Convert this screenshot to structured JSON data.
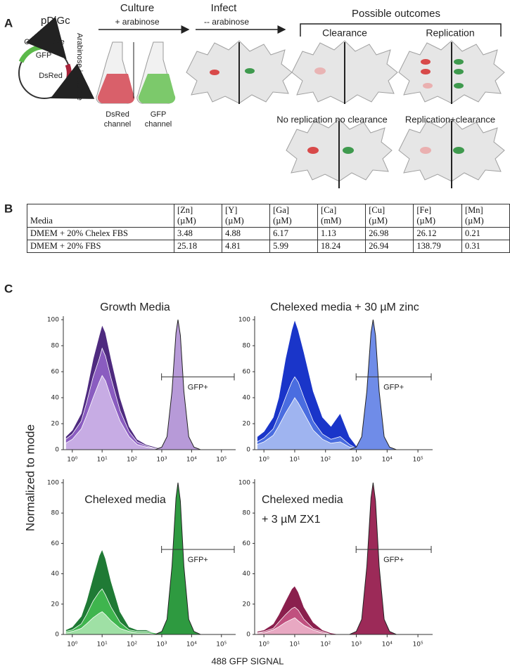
{
  "panel_a": {
    "label": "A",
    "plasmid": "pDiGc",
    "constitutive": "Constitutive",
    "gfp": "GFP",
    "dsred": "DsRed",
    "arabinose_inducible": "Arabinose inducible",
    "culture": "Culture",
    "plus_arabinose": "+ arabinose",
    "infect": "Infect",
    "minus_arabinose": "-- arabinose",
    "possible_outcomes": "Possible outcomes",
    "clearance": "Clearance",
    "replication": "Replication",
    "dsred_channel": [
      "DsRed",
      "channel"
    ],
    "gfp_channel": [
      "GFP",
      "channel"
    ],
    "no_replication_no_clearance": "No replication no clearance",
    "replication_clearance": "Replication+clearance"
  },
  "panel_b": {
    "label": "B",
    "table": {
      "header": [
        [
          "Media"
        ],
        [
          "[Zn]",
          "(µM)"
        ],
        [
          "[Y]",
          "(µM)"
        ],
        [
          "[Ga]",
          "(µM)"
        ],
        [
          "[Ca]",
          "(mM)"
        ],
        [
          "[Cu]",
          "(µM)"
        ],
        [
          "[Fe]",
          "(µM)"
        ],
        [
          "[Mn]",
          "(µM)"
        ]
      ],
      "rows": [
        [
          "DMEM + 20% Chelex FBS",
          "3.48",
          "4.88",
          "6.17",
          "1.13",
          "26.98",
          "26.12",
          "0.21"
        ],
        [
          "DMEM + 20% FBS",
          "25.18",
          "4.81",
          "5.99",
          "18.24",
          "26.94",
          "138.79",
          "0.31"
        ]
      ]
    }
  },
  "panel_c": {
    "label": "C",
    "ylabel": "Normalized to mode",
    "xlabel": "488 GFP SIGNAL"
  },
  "chart_data": [
    {
      "type": "area",
      "title_lines": [
        "Growth Media"
      ],
      "gate_label": "GFP+",
      "xscale": "log",
      "xlim": [
        0.5,
        300000
      ],
      "ylim": [
        0,
        100
      ],
      "xticks": [
        {
          "value": 1,
          "label": "10⁰"
        },
        {
          "value": 10,
          "label": "10¹"
        },
        {
          "value": 100,
          "label": "10²"
        },
        {
          "value": 1000,
          "label": "10³"
        },
        {
          "value": 10000,
          "label": "10⁴"
        },
        {
          "value": 100000,
          "label": "10⁵"
        }
      ],
      "yticks": [
        0,
        20,
        40,
        60,
        80,
        100
      ],
      "x": [
        0.6,
        1,
        2,
        3,
        5,
        8,
        10,
        13,
        20,
        40,
        80,
        150,
        300,
        600,
        1000,
        1500,
        2200,
        3000,
        3500,
        4200,
        5500,
        8000,
        12000,
        20000,
        50000
      ],
      "series": [
        {
          "color": "#4e2a7f",
          "values": [
            10,
            15,
            28,
            45,
            70,
            88,
            96,
            90,
            70,
            40,
            18,
            8,
            4,
            2,
            1,
            0,
            0,
            0,
            0,
            0,
            0,
            0,
            0,
            0,
            0
          ]
        },
        {
          "color": "#8a5cc0",
          "values": [
            8,
            12,
            22,
            36,
            56,
            70,
            78,
            72,
            55,
            30,
            14,
            6,
            3,
            1,
            1,
            0,
            0,
            0,
            0,
            0,
            0,
            0,
            0,
            0,
            0
          ]
        },
        {
          "color": "#c7ace4",
          "values": [
            5,
            8,
            16,
            26,
            40,
            52,
            57,
            53,
            40,
            22,
            10,
            4,
            2,
            1,
            0,
            0,
            0,
            0,
            0,
            0,
            0,
            0,
            0,
            0,
            0
          ]
        },
        {
          "color": "#b79ad8",
          "outline": "#222222",
          "values": [
            0,
            0,
            0,
            0,
            0,
            0,
            0,
            0,
            0,
            0,
            0,
            0,
            0,
            0,
            2,
            10,
            45,
            90,
            100,
            88,
            45,
            10,
            2,
            0,
            0
          ]
        }
      ]
    },
    {
      "type": "area",
      "title_lines": [
        "Chelexed media + 30 µM zinc"
      ],
      "gate_label": "GFP+",
      "xscale": "log",
      "xlim": [
        0.5,
        300000
      ],
      "ylim": [
        0,
        100
      ],
      "xticks": [
        {
          "value": 1,
          "label": "10⁰"
        },
        {
          "value": 10,
          "label": "10¹"
        },
        {
          "value": 100,
          "label": "10²"
        },
        {
          "value": 1000,
          "label": "10³"
        },
        {
          "value": 10000,
          "label": "10⁴"
        },
        {
          "value": 100000,
          "label": "10⁵"
        }
      ],
      "yticks": [
        0,
        20,
        40,
        60,
        80,
        100
      ],
      "x": [
        0.6,
        1,
        2,
        3,
        5,
        8,
        10,
        13,
        20,
        40,
        80,
        150,
        300,
        600,
        1000,
        1500,
        2200,
        3000,
        3500,
        4200,
        5500,
        8000,
        12000,
        20000,
        50000
      ],
      "series": [
        {
          "color": "#1a35c9",
          "values": [
            10,
            14,
            25,
            40,
            70,
            92,
            100,
            92,
            75,
            45,
            25,
            18,
            28,
            10,
            3,
            0,
            0,
            0,
            0,
            0,
            0,
            0,
            0,
            0,
            0
          ]
        },
        {
          "color": "#4a6de0",
          "values": [
            6,
            9,
            16,
            26,
            40,
            52,
            56,
            52,
            40,
            22,
            12,
            8,
            10,
            4,
            1,
            0,
            0,
            0,
            0,
            0,
            0,
            0,
            0,
            0,
            0
          ]
        },
        {
          "color": "#9fb4f0",
          "values": [
            4,
            6,
            11,
            18,
            28,
            36,
            40,
            36,
            28,
            15,
            8,
            5,
            6,
            2,
            1,
            0,
            0,
            0,
            0,
            0,
            0,
            0,
            0,
            0,
            0
          ]
        },
        {
          "color": "#6f8ce8",
          "outline": "#222222",
          "values": [
            0,
            0,
            0,
            0,
            0,
            0,
            0,
            0,
            0,
            0,
            0,
            0,
            0,
            0,
            2,
            10,
            45,
            90,
            100,
            88,
            45,
            10,
            2,
            0,
            0
          ]
        }
      ]
    },
    {
      "type": "area",
      "title_lines": [
        "Chelexed media"
      ],
      "gate_label": "GFP+",
      "xscale": "log",
      "xlim": [
        0.5,
        300000
      ],
      "ylim": [
        0,
        100
      ],
      "xticks": [
        {
          "value": 1,
          "label": "10⁰"
        },
        {
          "value": 10,
          "label": "10¹"
        },
        {
          "value": 100,
          "label": "10²"
        },
        {
          "value": 1000,
          "label": "10³"
        },
        {
          "value": 10000,
          "label": "10⁴"
        },
        {
          "value": 100000,
          "label": "10⁵"
        }
      ],
      "yticks": [
        0,
        20,
        40,
        60,
        80,
        100
      ],
      "x": [
        0.6,
        1,
        2,
        3,
        5,
        8,
        10,
        13,
        20,
        40,
        80,
        150,
        300,
        600,
        1000,
        1500,
        2200,
        3000,
        3500,
        4200,
        5500,
        8000,
        12000,
        20000,
        50000
      ],
      "series": [
        {
          "color": "#1f7a35",
          "values": [
            3,
            5,
            12,
            22,
            38,
            52,
            56,
            50,
            35,
            15,
            5,
            3,
            3,
            1,
            0,
            0,
            0,
            0,
            0,
            0,
            0,
            0,
            0,
            0,
            0
          ]
        },
        {
          "color": "#3fb54e",
          "values": [
            2,
            3,
            7,
            13,
            22,
            28,
            30,
            26,
            18,
            8,
            3,
            2,
            2,
            1,
            0,
            0,
            0,
            0,
            0,
            0,
            0,
            0,
            0,
            0,
            0
          ]
        },
        {
          "color": "#9fe0a5",
          "values": [
            1,
            2,
            4,
            7,
            11,
            14,
            15,
            13,
            9,
            4,
            2,
            1,
            1,
            0,
            0,
            0,
            0,
            0,
            0,
            0,
            0,
            0,
            0,
            0,
            0
          ]
        },
        {
          "color": "#2e9a40",
          "outline": "#222222",
          "values": [
            0,
            0,
            0,
            0,
            0,
            0,
            0,
            0,
            0,
            0,
            0,
            0,
            0,
            0,
            2,
            10,
            45,
            90,
            100,
            88,
            45,
            10,
            2,
            0,
            0
          ]
        }
      ]
    },
    {
      "type": "area",
      "title_lines": [
        "Chelexed media",
        "+ 3 µM ZX1"
      ],
      "gate_label": "GFP+",
      "xscale": "log",
      "xlim": [
        0.5,
        300000
      ],
      "ylim": [
        0,
        100
      ],
      "xticks": [
        {
          "value": 1,
          "label": "10⁰"
        },
        {
          "value": 10,
          "label": "10¹"
        },
        {
          "value": 100,
          "label": "10²"
        },
        {
          "value": 1000,
          "label": "10³"
        },
        {
          "value": 10000,
          "label": "10⁴"
        },
        {
          "value": 100000,
          "label": "10⁵"
        }
      ],
      "yticks": [
        0,
        20,
        40,
        60,
        80,
        100
      ],
      "x": [
        0.6,
        1,
        2,
        3,
        5,
        8,
        10,
        13,
        20,
        40,
        80,
        150,
        300,
        600,
        1000,
        1500,
        2200,
        3000,
        3500,
        4200,
        5500,
        8000,
        12000,
        20000,
        50000
      ],
      "series": [
        {
          "color": "#8a1f4d",
          "values": [
            2,
            3,
            7,
            13,
            22,
            30,
            32,
            28,
            18,
            8,
            3,
            1,
            0,
            0,
            0,
            0,
            0,
            0,
            0,
            0,
            0,
            0,
            0,
            0,
            0
          ]
        },
        {
          "color": "#c0507f",
          "values": [
            1,
            2,
            4,
            8,
            13,
            17,
            18,
            16,
            10,
            4,
            2,
            0,
            0,
            0,
            0,
            0,
            0,
            0,
            0,
            0,
            0,
            0,
            0,
            0,
            0
          ]
        },
        {
          "color": "#e8a8c2",
          "values": [
            1,
            1,
            3,
            5,
            8,
            10,
            11,
            9,
            6,
            3,
            1,
            0,
            0,
            0,
            0,
            0,
            0,
            0,
            0,
            0,
            0,
            0,
            0,
            0,
            0
          ]
        },
        {
          "color": "#9c2a58",
          "outline": "#222222",
          "values": [
            0,
            0,
            0,
            0,
            0,
            0,
            0,
            0,
            0,
            0,
            0,
            0,
            0,
            0,
            2,
            10,
            45,
            90,
            100,
            88,
            45,
            10,
            2,
            0,
            0
          ]
        }
      ]
    }
  ]
}
